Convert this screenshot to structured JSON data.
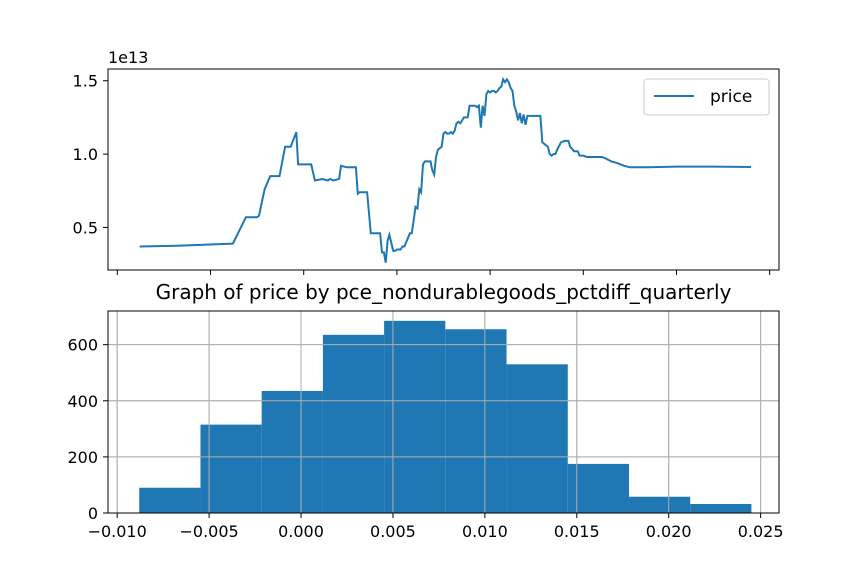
{
  "chart_data": [
    {
      "type": "line",
      "title": "",
      "xlabel": "",
      "ylabel": "",
      "offset_label": "1e13",
      "legend": {
        "placement": "top-right",
        "entries": [
          "price"
        ]
      },
      "grid": false,
      "xlim": [
        -0.0105,
        0.0255
      ],
      "ylim": [
        2100000000000.0,
        15800000000000.0
      ],
      "yticks": [
        5000000000000.0,
        10000000000000.0,
        15000000000000.0
      ],
      "ytick_labels": [
        "0.5",
        "1.0",
        "1.5"
      ],
      "xticks": [
        -0.01,
        -0.005,
        0.0,
        0.005,
        0.01,
        0.015,
        0.02,
        0.025
      ],
      "color": "#1f77b4",
      "series": [
        {
          "name": "price",
          "x": [
            -0.0088,
            -0.0068,
            -0.0038,
            -0.0031,
            -0.0025,
            -0.0024,
            -0.0021,
            -0.0018,
            -0.0016,
            -0.0013,
            -0.001,
            -0.0007,
            -0.0004,
            -0.0003,
            0.0,
            0.0001,
            0.0002,
            0.0003,
            0.0004,
            0.0006,
            0.001,
            0.0013,
            0.0014,
            0.0016,
            0.0019,
            0.002,
            0.0023,
            0.0028,
            0.0029,
            0.003,
            0.0033,
            0.0034,
            0.0036,
            0.0039,
            0.004,
            0.0041,
            0.0042,
            0.0043,
            0.0044,
            0.0045,
            0.0046,
            0.0048,
            0.0049,
            0.005,
            0.0051,
            0.0052,
            0.0053,
            0.0054,
            0.0055,
            0.0057,
            0.0058,
            0.0059,
            0.006,
            0.0061,
            0.0062,
            0.0063,
            0.0064,
            0.0065,
            0.0066,
            0.0067,
            0.0068,
            0.0069,
            0.007,
            0.0071,
            0.0072,
            0.0073,
            0.0074,
            0.0075,
            0.0076,
            0.0077,
            0.0078,
            0.0079,
            0.008,
            0.0081,
            0.0082,
            0.0083,
            0.0084,
            0.0085,
            0.0086,
            0.0088,
            0.0089,
            0.009,
            0.0091,
            0.0092,
            0.0093,
            0.0094,
            0.0095,
            0.0096,
            0.0097,
            0.0098,
            0.0099,
            0.01,
            0.0101,
            0.0102,
            0.0103,
            0.0104,
            0.0105,
            0.0106,
            0.0107,
            0.0108,
            0.0109,
            0.011,
            0.0111,
            0.0112,
            0.0113,
            0.0114,
            0.0115,
            0.0116,
            0.0117,
            0.0118,
            0.0119,
            0.012,
            0.0121,
            0.0122,
            0.0123,
            0.0124,
            0.0125,
            0.0126,
            0.0127,
            0.0128,
            0.0129,
            0.013,
            0.0131,
            0.0132,
            0.0133,
            0.0134,
            0.0135,
            0.0136,
            0.0138,
            0.014,
            0.0142,
            0.0143,
            0.0145,
            0.0147,
            0.0148,
            0.015,
            0.0152,
            0.0155,
            0.016,
            0.0162,
            0.0165,
            0.0168,
            0.017,
            0.0172,
            0.0175,
            0.0185,
            0.02,
            0.022,
            0.024
          ],
          "y": [
            3700000000000.0,
            3750000000000.0,
            3900000000000.0,
            5700000000000.0,
            5700000000000.0,
            5800000000000.0,
            7600000000000.0,
            8500000000000.0,
            8500000000000.0,
            8500000000000.0,
            10500000000000.0,
            10500000000000.0,
            11500000000000.0,
            9300000000000.0,
            9300000000000.0,
            9300000000000.0,
            9300000000000.0,
            9300000000000.0,
            9300000000000.0,
            8200000000000.0,
            8300000000000.0,
            8200000000000.0,
            8300000000000.0,
            8200000000000.0,
            8300000000000.0,
            9200000000000.0,
            9100000000000.0,
            9100000000000.0,
            7300000000000.0,
            7400000000000.0,
            7400000000000.0,
            7400000000000.0,
            4600000000000.0,
            4600000000000.0,
            4600000000000.0,
            4600000000000.0,
            3300000000000.0,
            3300000000000.0,
            2600000000000.0,
            4100000000000.0,
            4500000000000.0,
            3400000000000.0,
            3400000000000.0,
            3500000000000.0,
            3500000000000.0,
            3500000000000.0,
            3700000000000.0,
            3700000000000.0,
            4000000000000.0,
            4600000000000.0,
            4600000000000.0,
            5500000000000.0,
            6400000000000.0,
            6300000000000.0,
            7600000000000.0,
            7400000000000.0,
            9300000000000.0,
            9500000000000.0,
            9500000000000.0,
            9500000000000.0,
            9500000000000.0,
            8900000000000.0,
            8600000000000.0,
            9800000000000.0,
            10300000000000.0,
            10400000000000.0,
            10500000000000.0,
            11400000000000.0,
            11500000000000.0,
            11400000000000.0,
            11400000000000.0,
            11500000000000.0,
            11400000000000.0,
            11600000000000.0,
            12100000000000.0,
            12200000000000.0,
            12100000000000.0,
            12300000000000.0,
            12500000000000.0,
            12500000000000.0,
            13300000000000.0,
            13300000000000.0,
            13300000000000.0,
            13300000000000.0,
            13200000000000.0,
            13300000000000.0,
            11800000000000.0,
            13300000000000.0,
            12600000000000.0,
            14100000000000.0,
            14300000000000.0,
            14200000000000.0,
            14300000000000.0,
            14300000000000.0,
            14200000000000.0,
            14300000000000.0,
            14500000000000.0,
            14600000000000.0,
            15100000000000.0,
            14900000000000.0,
            15100000000000.0,
            14900000000000.0,
            14500000000000.0,
            14300000000000.0,
            13300000000000.0,
            12900000000000.0,
            12300000000000.0,
            12800000000000.0,
            12100000000000.0,
            12700000000000.0,
            12000000000000.0,
            12600000000000.0,
            12600000000000.0,
            12600000000000.0,
            12600000000000.0,
            12600000000000.0,
            12600000000000.0,
            12600000000000.0,
            12600000000000.0,
            10800000000000.0,
            10700000000000.0,
            10600000000000.0,
            10500000000000.0,
            10000000000000.0,
            9900000000000.0,
            10000000000000.0,
            10000000000000.0,
            10300000000000.0,
            10800000000000.0,
            10900000000000.0,
            10900000000000.0,
            10500000000000.0,
            10200000000000.0,
            10200000000000.0,
            9900000000000.0,
            9900000000000.0,
            9800000000000.0,
            9800000000000.0,
            9800000000000.0,
            9700000000000.0,
            9500000000000.0,
            9400000000000.0,
            9300000000000.0,
            9200000000000.0,
            9100000000000.0,
            9100000000000.0,
            9150000000000.0,
            9150000000000.0,
            9120000000000.0
          ]
        }
      ]
    },
    {
      "type": "bar",
      "title": "Graph of price by pce_nondurablegoods_pctdiff_quarterly",
      "xlabel": "",
      "ylabel": "",
      "grid": true,
      "color": "#1f77b4",
      "xlim": [
        -0.0105,
        0.026
      ],
      "ylim": [
        0,
        720
      ],
      "yticks": [
        0,
        200,
        400,
        600
      ],
      "ytick_labels": [
        "0",
        "200",
        "400",
        "600"
      ],
      "xticks": [
        -0.01,
        -0.005,
        0.0,
        0.005,
        0.01,
        0.015,
        0.02,
        0.025
      ],
      "xtick_labels": [
        "−0.010",
        "−0.005",
        "0.000",
        "0.005",
        "0.010",
        "0.015",
        "0.020",
        "0.025"
      ],
      "bin_edges": [
        -0.0088,
        -0.00547,
        -0.00214,
        0.00119,
        0.00452,
        0.00785,
        0.01118,
        0.01451,
        0.01784,
        0.02117,
        0.0245
      ],
      "values": [
        90,
        315,
        435,
        635,
        685,
        655,
        530,
        175,
        58,
        32
      ]
    }
  ]
}
